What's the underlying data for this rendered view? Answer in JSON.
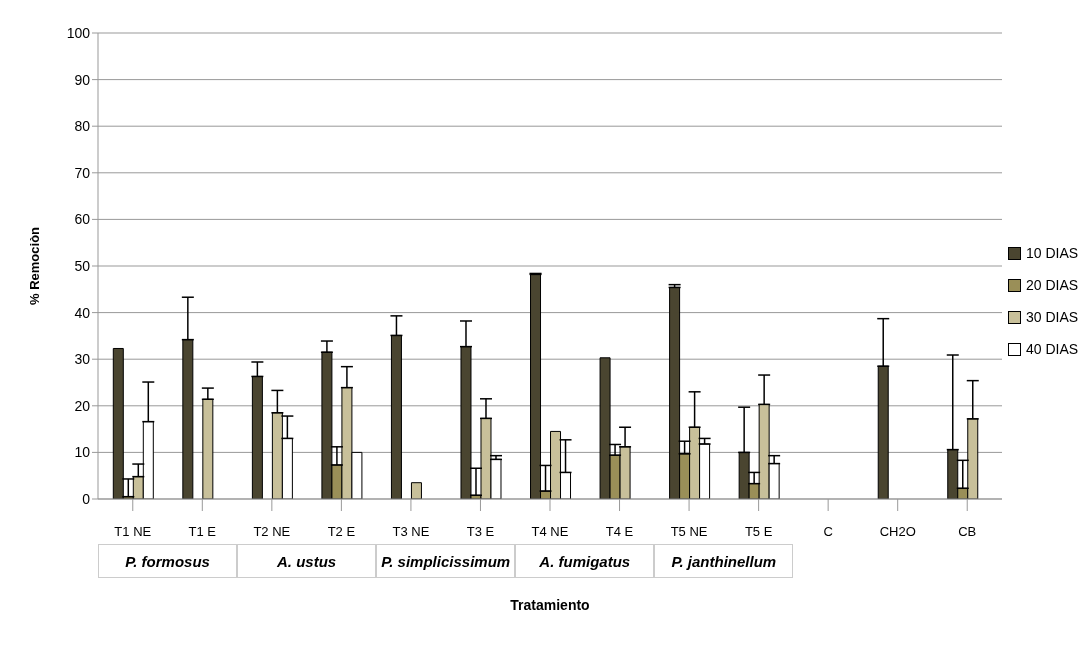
{
  "chart_data": {
    "type": "bar",
    "xlabel": "Tratamiento",
    "ylabel": "% Remociòn",
    "categories": [
      "T1 NE",
      "T1 E",
      "T2 NE",
      "T2 E",
      "T3 NE",
      "T3 E",
      "T4 NE",
      "T4 E",
      "T5 NE",
      "T5 E",
      "C",
      "CH2O",
      "CB"
    ],
    "series": [
      {
        "name": "10 DIAS",
        "color": "#4a4530",
        "values": [
          32.3,
          34.2,
          26.3,
          31.5,
          35.1,
          32.7,
          48.2,
          30.3,
          45.4,
          10,
          null,
          28.5,
          10.6
        ],
        "errors": [
          null,
          [
            34.2,
            43.3
          ],
          [
            26.3,
            29.4
          ],
          [
            31.5,
            33.9
          ],
          [
            35.1,
            39.3
          ],
          [
            32.7,
            38.2
          ],
          [
            48.2,
            48.4
          ],
          null,
          [
            45.4,
            46
          ],
          [
            10,
            19.7
          ],
          null,
          [
            28.5,
            38.7
          ],
          [
            10.6,
            30.9
          ]
        ]
      },
      {
        "name": "20 DIAS",
        "color": "#9a8f58",
        "values": [
          0.5,
          null,
          null,
          7.3,
          null,
          0.8,
          1.7,
          9.4,
          9.7,
          3.3,
          null,
          null,
          2.3
        ],
        "errors": [
          [
            0.5,
            4.3
          ],
          null,
          null,
          [
            7.3,
            11.2
          ],
          null,
          [
            0.8,
            6.6
          ],
          [
            1.7,
            7.2
          ],
          [
            9.4,
            11.7
          ],
          [
            9.7,
            12.4
          ],
          [
            3.3,
            5.7
          ],
          null,
          null,
          [
            2.3,
            8.3
          ]
        ]
      },
      {
        "name": "30 DIAS",
        "color": "#c8c09a",
        "values": [
          4.8,
          21.4,
          18.5,
          23.9,
          3.5,
          17.3,
          14.5,
          11.2,
          15.4,
          20.3,
          null,
          null,
          17.2
        ],
        "errors": [
          [
            4.8,
            7.5
          ],
          [
            21.4,
            23.8
          ],
          [
            18.5,
            23.3
          ],
          [
            23.9,
            28.4
          ],
          null,
          [
            17.3,
            21.5
          ],
          null,
          [
            11.2,
            15.4
          ],
          [
            15.4,
            23
          ],
          [
            20.3,
            26.6
          ],
          null,
          null,
          [
            17.2,
            25.4
          ]
        ]
      },
      {
        "name": "40 DIAS",
        "color": "#ffffff",
        "values": [
          16.6,
          null,
          13,
          10,
          null,
          8.5,
          5.7,
          null,
          11.8,
          7.6,
          null,
          null,
          null
        ],
        "errors": [
          [
            16.6,
            25.1
          ],
          null,
          [
            13,
            17.8
          ],
          null,
          null,
          [
            8.5,
            9.3
          ],
          [
            5.7,
            12.7
          ],
          null,
          [
            11.8,
            13
          ],
          [
            7.6,
            9.3
          ],
          null,
          null,
          null
        ]
      }
    ],
    "ylim": [
      0,
      100
    ],
    "yticks": [
      0,
      10,
      20,
      30,
      40,
      50,
      60,
      70,
      80,
      90,
      100
    ],
    "grid": "y",
    "legend": "right",
    "annotations": [
      "P. formosus",
      "A. ustus",
      "P. simplicissimum",
      "A. fumigatus",
      "P. janthinellum"
    ]
  }
}
